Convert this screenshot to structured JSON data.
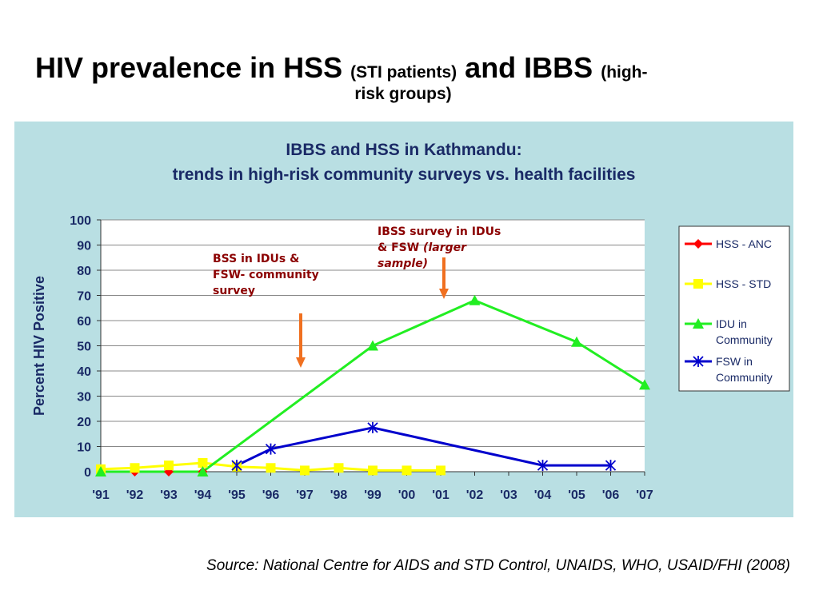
{
  "slide": {
    "title_part1": "HIV prevalence in HSS ",
    "title_part2": "(STI patients)",
    "title_part3": " and IBBS ",
    "title_part4": "(high-",
    "title_line2": "risk groups)",
    "source": "Source: National Centre for AIDS and STD Control, UNAIDS, WHO, USAID/FHI (2008)"
  },
  "colors": {
    "panel_bg": "#b9dfe3",
    "plot_bg": "#ffffff",
    "hss_anc": "#ff0000",
    "hss_std": "#ffff00",
    "idu": "#22ee22",
    "fsw": "#0000cc",
    "arrow": "#f07020",
    "annotation": "#8b0000"
  },
  "chart_data": {
    "type": "line",
    "title_line1": "IBBS and HSS in Kathmandu:",
    "title_line2": "trends in high-risk community surveys vs. health facilities",
    "ylabel": "Percent HIV Positive",
    "xlabel": "",
    "ylim": [
      0,
      100
    ],
    "yticks": [
      0,
      10,
      20,
      30,
      40,
      50,
      60,
      70,
      80,
      90,
      100
    ],
    "categories": [
      "'91",
      "'92",
      "'93",
      "'94",
      "'95",
      "'96",
      "'97",
      "'98",
      "'99",
      "'00",
      "'01",
      "'02",
      "'03",
      "'04",
      "'05",
      "'06",
      "'07"
    ],
    "grid": "horizontal",
    "legend_position": "right",
    "series": [
      {
        "name": "HSS - ANC",
        "marker": "diamond",
        "color": "#ff0000",
        "values": [
          0,
          0,
          0,
          0,
          null,
          null,
          null,
          null,
          null,
          null,
          null,
          null,
          null,
          null,
          null,
          null,
          null
        ]
      },
      {
        "name": "HSS - STD",
        "marker": "square",
        "color": "#ffff00",
        "values": [
          1,
          1.5,
          2.5,
          3.5,
          2,
          1.5,
          0.5,
          1.5,
          0.5,
          0.5,
          0.5,
          null,
          null,
          null,
          null,
          null,
          null
        ]
      },
      {
        "name": "IDU in Community",
        "marker": "triangle",
        "color": "#22ee22",
        "values": [
          0,
          null,
          null,
          0,
          null,
          null,
          null,
          null,
          50,
          null,
          null,
          68,
          null,
          null,
          51.5,
          null,
          34.5
        ]
      },
      {
        "name": "FSW in Community",
        "marker": "star",
        "color": "#0000cc",
        "values": [
          null,
          null,
          null,
          null,
          2.5,
          9,
          null,
          null,
          17.5,
          null,
          null,
          null,
          null,
          2.5,
          null,
          2.5,
          null
        ]
      }
    ],
    "legend": [
      "HSS - ANC",
      "HSS - STD",
      "IDU in\nCommunity",
      "FSW in\nCommunity"
    ],
    "annotations": [
      {
        "lines": [
          "BSS in IDUs &",
          "FSW- community",
          "survey"
        ],
        "italic_suffix": ""
      },
      {
        "lines": [
          "IBSS survey in IDUs",
          "& FSW "
        ],
        "italic_lines": [
          "(larger",
          "sample)"
        ]
      }
    ]
  }
}
